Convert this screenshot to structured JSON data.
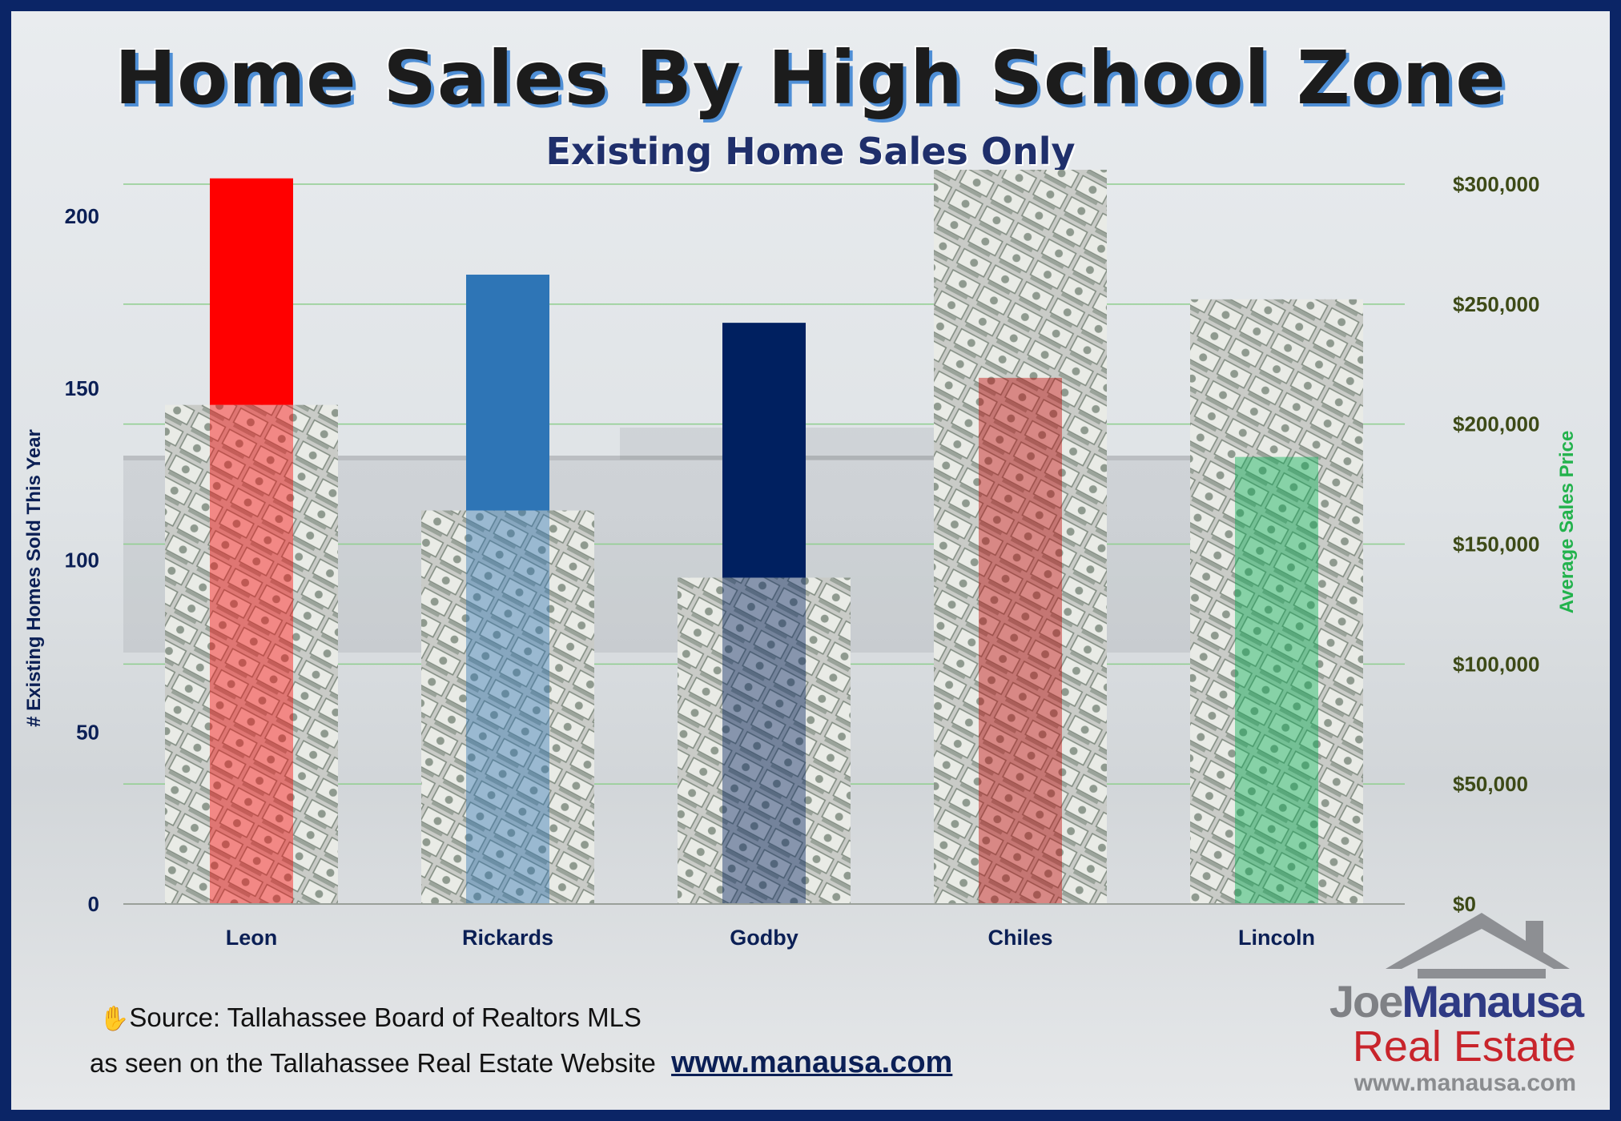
{
  "title": "Home Sales By High School Zone",
  "subtitle": "Existing Home Sales Only",
  "source_line": "Source: Tallahassee Board of Realtors MLS",
  "seen_on": "as seen on the Tallahassee Real Estate Website",
  "website": "www.manausa.com",
  "hand_icon": "✋",
  "logo": {
    "icon": "house-roof-icon",
    "name_part1": "Joe",
    "name_part2": "Manausa",
    "company": "Real Estate",
    "url": "www.manausa.com"
  },
  "colors": {
    "leon": "#ff0000",
    "rickards": "#2e75b6",
    "godby": "#002060",
    "chiles": "#c00000",
    "lincoln": "#00b050",
    "grid": "#8fce8f",
    "price_bar": "#c9cbcc"
  },
  "chart_data": {
    "type": "bar",
    "categories": [
      "Leon",
      "Rickards",
      "Godby",
      "Chiles",
      "Lincoln"
    ],
    "series": [
      {
        "name": "",
        "axis": "left",
        "values": [
          211,
          183,
          169,
          153,
          130
        ]
      },
      {
        "name": "",
        "axis": "right",
        "values": [
          208000,
          164000,
          136000,
          306000,
          252000
        ]
      }
    ],
    "ylabel": "# Existing Homes Sold This Year",
    "y2label": "Average Sales Price",
    "ylim": [
      0,
      210
    ],
    "y2lim": [
      0,
      300000
    ],
    "yticks": [
      "0",
      "50",
      "100",
      "150",
      "200"
    ],
    "y2ticks": [
      "$0",
      "$50,000",
      "$100,000",
      "$150,000",
      "$200,000",
      "$250,000",
      "$300,000"
    ],
    "grid": true
  }
}
